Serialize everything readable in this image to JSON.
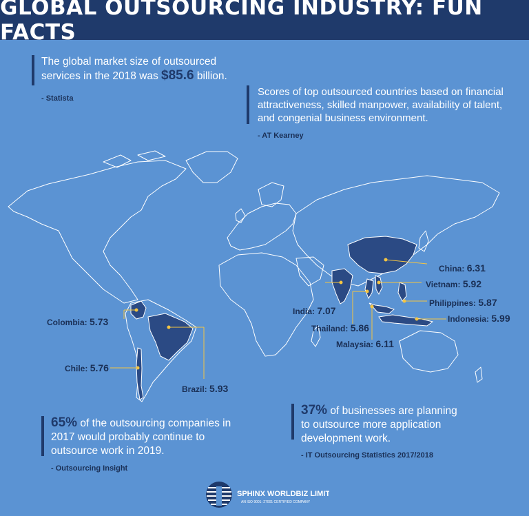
{
  "header": {
    "title": "GLOBAL OUTSOURCING INDUSTRY: FUN FACTS"
  },
  "fact1": {
    "text_before": "The global market size of outsourced services in the 2018 was ",
    "highlight": "$85.6",
    "text_after": " billion.",
    "source": "- Statista"
  },
  "fact2": {
    "text": "Scores of top outsourced countries based on financial attractiveness, skilled manpower, availability of talent, and congenial business environment.",
    "source": "- AT Kearney"
  },
  "fact3": {
    "highlight": "65%",
    "text": " of the outsourcing companies in 2017 would probably continue to outsource work in 2019.",
    "source": "- Outsourcing Insight"
  },
  "fact4": {
    "highlight": "37%",
    "text": " of businesses are planning to outsource more application development work.",
    "source": "- IT Outsourcing Statistics 2017/2018"
  },
  "countries": [
    {
      "name": "China:",
      "score": "6.31"
    },
    {
      "name": "Vietnam:",
      "score": "5.92"
    },
    {
      "name": "Philippines:",
      "score": "5.87"
    },
    {
      "name": "Indonesia:",
      "score": "5.99"
    },
    {
      "name": "India:",
      "score": "7.07"
    },
    {
      "name": "Thailand:",
      "score": "5.86"
    },
    {
      "name": "Malaysia:",
      "score": "6.11"
    },
    {
      "name": "Colombia:",
      "score": "5.73"
    },
    {
      "name": "Chile:",
      "score": "5.76"
    },
    {
      "name": "Brazil:",
      "score": "5.93"
    }
  ],
  "logo": {
    "name": "SPHINX WORLDBIZ LIMITED",
    "tagline": "AN ISO 9001: 27001 CERTIFIED COMPANY"
  },
  "colors": {
    "background": "#5b93d3",
    "header": "#1f3a6b",
    "highlight_country": "#2b4a84",
    "land": "#5b93d3"
  }
}
